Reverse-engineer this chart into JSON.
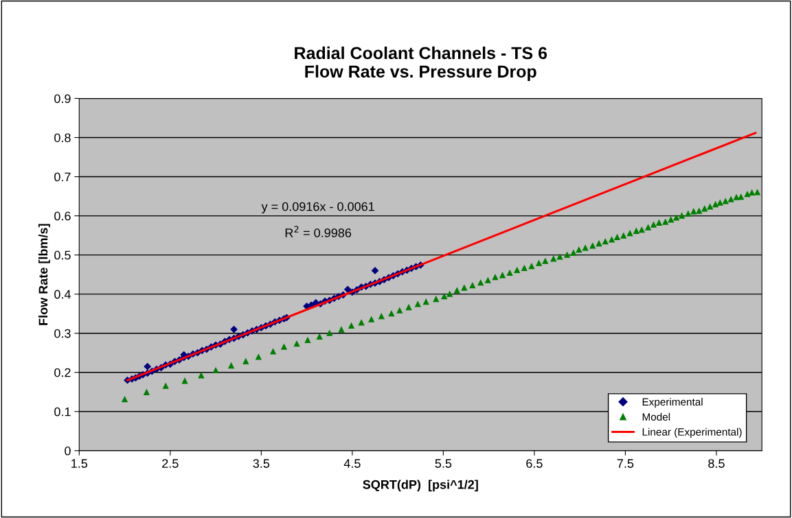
{
  "chart_data": {
    "type": "scatter",
    "title": "Radial Coolant Channels - TS 6\nFlow Rate vs. Pressure Drop",
    "xlabel": "SQRT(dP)  [psi^1/2]",
    "ylabel": "Flow Rate [lbm/s]",
    "xlim": [
      1.5,
      9
    ],
    "xticks": [
      1.5,
      2.5,
      3.5,
      4.5,
      5.5,
      6.5,
      7.5,
      8.5
    ],
    "ylim": [
      0,
      0.9
    ],
    "yticks": [
      0,
      0.1,
      0.2,
      0.3,
      0.4,
      0.5,
      0.6,
      0.7,
      0.8,
      0.9
    ],
    "grid": "y",
    "legend": "bottom right",
    "annotations": [
      "y = 0.0916x - 0.0061",
      "R$^{2}$ = 0.9986"
    ],
    "series": [
      {
        "name": "Experimental",
        "marker": "diamond",
        "color": "#000080",
        "x": [
          2.03,
          2.08,
          2.12,
          2.16,
          2.2,
          2.25,
          2.25,
          2.3,
          2.35,
          2.4,
          2.45,
          2.5,
          2.55,
          2.6,
          2.65,
          2.65,
          2.7,
          2.75,
          2.8,
          2.85,
          2.9,
          2.95,
          3.0,
          3.05,
          3.1,
          3.15,
          3.2,
          3.2,
          3.25,
          3.3,
          3.35,
          3.4,
          3.45,
          3.5,
          3.55,
          3.6,
          3.65,
          3.7,
          3.75,
          3.78,
          4.0,
          4.05,
          4.1,
          4.15,
          4.2,
          4.25,
          4.3,
          4.35,
          4.4,
          4.45,
          4.5,
          4.55,
          4.6,
          4.65,
          4.7,
          4.75,
          4.75,
          4.8,
          4.85,
          4.9,
          4.95,
          5.0,
          5.05,
          5.1,
          5.15,
          5.2,
          5.25
        ],
        "values": [
          0.18,
          0.183,
          0.186,
          0.19,
          0.194,
          0.215,
          0.198,
          0.203,
          0.208,
          0.212,
          0.219,
          0.221,
          0.228,
          0.232,
          0.238,
          0.245,
          0.241,
          0.247,
          0.25,
          0.256,
          0.259,
          0.265,
          0.27,
          0.272,
          0.279,
          0.284,
          0.31,
          0.287,
          0.292,
          0.296,
          0.301,
          0.306,
          0.31,
          0.314,
          0.319,
          0.323,
          0.329,
          0.333,
          0.337,
          0.34,
          0.369,
          0.372,
          0.378,
          0.375,
          0.382,
          0.384,
          0.389,
          0.394,
          0.398,
          0.412,
          0.405,
          0.411,
          0.418,
          0.42,
          0.425,
          0.46,
          0.428,
          0.432,
          0.437,
          0.442,
          0.447,
          0.452,
          0.457,
          0.461,
          0.466,
          0.47,
          0.474
        ]
      },
      {
        "name": "Model",
        "marker": "triangle",
        "color": "#008000",
        "x": [
          2.0,
          2.24,
          2.45,
          2.66,
          2.84,
          3.0,
          3.17,
          3.33,
          3.47,
          3.63,
          3.75,
          3.89,
          4.01,
          4.14,
          4.25,
          4.38,
          4.49,
          4.6,
          4.71,
          4.82,
          4.93,
          5.02,
          5.12,
          5.22,
          5.31,
          5.42,
          5.51,
          5.57,
          5.65,
          5.73,
          5.82,
          5.91,
          5.99,
          6.07,
          6.15,
          6.23,
          6.31,
          6.39,
          6.47,
          6.55,
          6.62,
          6.71,
          6.78,
          6.86,
          6.93,
          6.99,
          7.06,
          7.14,
          7.21,
          7.28,
          7.35,
          7.41,
          7.48,
          7.55,
          7.62,
          7.68,
          7.75,
          7.81,
          7.87,
          7.94,
          8.0,
          8.06,
          8.12,
          8.19,
          8.25,
          8.31,
          8.37,
          8.43,
          8.49,
          8.54,
          8.6,
          8.66,
          8.72,
          8.77,
          8.84,
          8.89,
          8.95
        ],
        "values": [
          0.132,
          0.15,
          0.166,
          0.179,
          0.193,
          0.206,
          0.218,
          0.229,
          0.24,
          0.254,
          0.266,
          0.274,
          0.283,
          0.292,
          0.301,
          0.31,
          0.32,
          0.328,
          0.336,
          0.344,
          0.351,
          0.359,
          0.367,
          0.375,
          0.381,
          0.388,
          0.395,
          0.401,
          0.41,
          0.417,
          0.423,
          0.43,
          0.436,
          0.444,
          0.449,
          0.455,
          0.462,
          0.467,
          0.472,
          0.48,
          0.485,
          0.491,
          0.496,
          0.501,
          0.506,
          0.514,
          0.519,
          0.524,
          0.53,
          0.535,
          0.54,
          0.546,
          0.55,
          0.556,
          0.562,
          0.565,
          0.571,
          0.578,
          0.583,
          0.585,
          0.591,
          0.596,
          0.601,
          0.606,
          0.612,
          0.613,
          0.619,
          0.624,
          0.63,
          0.634,
          0.638,
          0.643,
          0.648,
          0.649,
          0.656,
          0.66,
          0.661
        ]
      },
      {
        "name": "Linear (Experimental)",
        "type": "line",
        "marker": "none",
        "line_style": "solid",
        "color": "#ff0000",
        "x": [
          2.03,
          8.93
        ],
        "values": [
          0.18,
          0.812
        ]
      }
    ]
  }
}
